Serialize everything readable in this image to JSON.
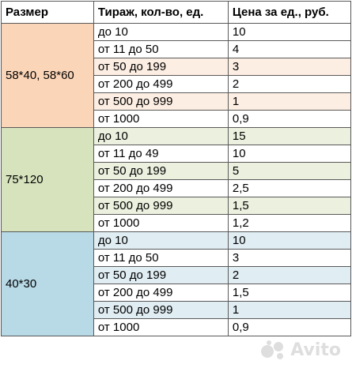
{
  "header": {
    "size": "Размер",
    "quantity": "Тираж, кол-во, ед.",
    "price": "Цена за ед., руб."
  },
  "groups": [
    {
      "size": "58*40, 58*60",
      "rows": [
        {
          "qty": "до 10",
          "price": "10"
        },
        {
          "qty": "от 11 до 50",
          "price": "4"
        },
        {
          "qty": "от 50 до 199",
          "price": "3"
        },
        {
          "qty": "от 200 до 499",
          "price": "2"
        },
        {
          "qty": "от 500 до 999",
          "price": "1"
        },
        {
          "qty": "от 1000",
          "price": "0,9"
        }
      ]
    },
    {
      "size": "75*120",
      "rows": [
        {
          "qty": "до 10",
          "price": "15"
        },
        {
          "qty": "от 11 до 49",
          "price": "10"
        },
        {
          "qty": "от 50 до 199",
          "price": "5"
        },
        {
          "qty": "от 200 до 499",
          "price": "2,5"
        },
        {
          "qty": "от 500 до 999",
          "price": "1,5"
        },
        {
          "qty": "от 1000",
          "price": "1,2"
        }
      ]
    },
    {
      "size": "40*30",
      "rows": [
        {
          "qty": "до 10",
          "price": "10"
        },
        {
          "qty": "от 11 до 50",
          "price": "3"
        },
        {
          "qty": "от 50 до 199",
          "price": "2"
        },
        {
          "qty": "от 200 до 499",
          "price": "1,5"
        },
        {
          "qty": "от 500 до 999",
          "price": "1"
        },
        {
          "qty": "от 1000",
          "price": "0,9"
        }
      ]
    }
  ],
  "colors": {
    "group1_size": "#fbd5b8",
    "group1_shade": "#fdeee3",
    "group2_size": "#d6e3bd",
    "group2_shade": "#ebf0df",
    "group3_size": "#b8d9e6",
    "group3_shade": "#e0edf3",
    "border": "#595959"
  },
  "watermark": {
    "text": "Avito",
    "icon": "avito-logo-icon"
  }
}
